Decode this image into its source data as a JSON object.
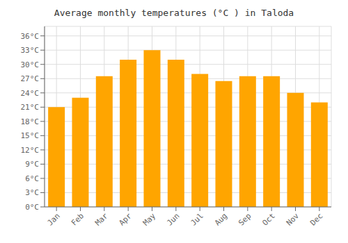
{
  "chart_data": {
    "type": "bar",
    "title": "Average monthly temperatures (°C ) in Taloda",
    "categories": [
      "Jan",
      "Feb",
      "Mar",
      "Apr",
      "May",
      "Jun",
      "Jul",
      "Aug",
      "Sep",
      "Oct",
      "Nov",
      "Dec"
    ],
    "values": [
      21,
      23,
      27.5,
      31,
      33,
      31,
      28,
      26.5,
      27.5,
      27.5,
      24,
      22
    ],
    "color": "#FFA500",
    "ylim": [
      0,
      38
    ],
    "yticks": [
      {
        "value": 0,
        "label": "0°C"
      },
      {
        "value": 3,
        "label": "3°C"
      },
      {
        "value": 6,
        "label": "6°C"
      },
      {
        "value": 9,
        "label": "9°C"
      },
      {
        "value": 12,
        "label": "12°C"
      },
      {
        "value": 15,
        "label": "15°C"
      },
      {
        "value": 18,
        "label": "18°C"
      },
      {
        "value": 21,
        "label": "21°C"
      },
      {
        "value": 24,
        "label": "24°C"
      },
      {
        "value": 27,
        "label": "27°C"
      },
      {
        "value": 30,
        "label": "30°C"
      },
      {
        "value": 33,
        "label": "33°C"
      },
      {
        "value": 36,
        "label": "36°C"
      }
    ],
    "grid": true
  }
}
